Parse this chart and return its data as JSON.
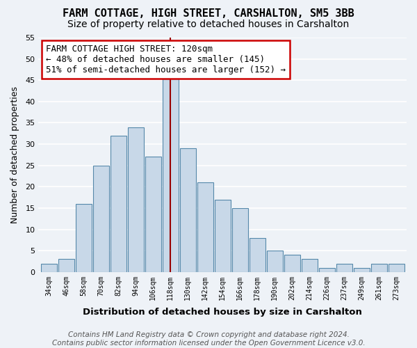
{
  "title": "FARM COTTAGE, HIGH STREET, CARSHALTON, SM5 3BB",
  "subtitle": "Size of property relative to detached houses in Carshalton",
  "xlabel": "Distribution of detached houses by size in Carshalton",
  "ylabel": "Number of detached properties",
  "bin_labels": [
    "34sqm",
    "46sqm",
    "58sqm",
    "70sqm",
    "82sqm",
    "94sqm",
    "106sqm",
    "118sqm",
    "130sqm",
    "142sqm",
    "154sqm",
    "166sqm",
    "178sqm",
    "190sqm",
    "202sqm",
    "214sqm",
    "226sqm",
    "237sqm",
    "249sqm",
    "261sqm",
    "273sqm"
  ],
  "bin_values": [
    2,
    3,
    16,
    25,
    32,
    34,
    27,
    46,
    29,
    21,
    17,
    15,
    8,
    5,
    4,
    3,
    1,
    2,
    1,
    2,
    2
  ],
  "bar_color": "#c8d8e8",
  "bar_edge_color": "#5588aa",
  "highlight_bin_index": 7,
  "highlight_line_color": "#990000",
  "annotation_text": "FARM COTTAGE HIGH STREET: 120sqm\n← 48% of detached houses are smaller (145)\n51% of semi-detached houses are larger (152) →",
  "annotation_box_edge_color": "#cc0000",
  "ylim": [
    0,
    55
  ],
  "yticks": [
    0,
    5,
    10,
    15,
    20,
    25,
    30,
    35,
    40,
    45,
    50,
    55
  ],
  "footer_text": "Contains HM Land Registry data © Crown copyright and database right 2024.\nContains public sector information licensed under the Open Government Licence v3.0.",
  "background_color": "#eef2f7",
  "grid_color": "#ffffff",
  "title_fontsize": 11,
  "subtitle_fontsize": 10,
  "annotation_fontsize": 9,
  "footer_fontsize": 7.5
}
